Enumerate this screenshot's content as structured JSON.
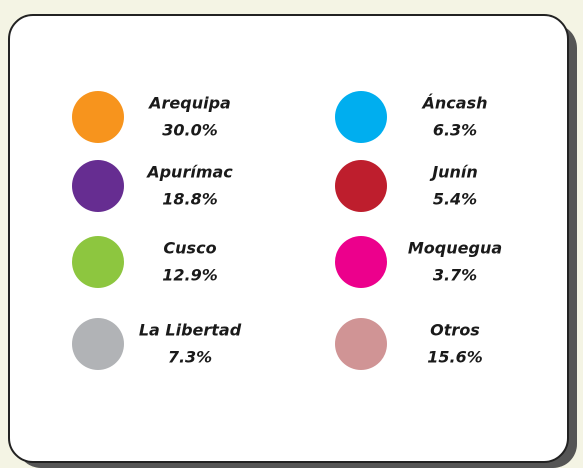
{
  "items": [
    {
      "name": "Arequipa",
      "share": "30.0%",
      "color": "#f7941d"
    },
    {
      "name": "Apurímac",
      "share": "18.8%",
      "color": "#662d91"
    },
    {
      "name": "Cusco",
      "share": "12.9%",
      "color": "#8dc63f"
    },
    {
      "name": "La Libertad",
      "share": "7.3%",
      "color": "#b1b3b6"
    },
    {
      "name": "Áncash",
      "share": "6.3%",
      "color": "#00aeef"
    },
    {
      "name": "Junín",
      "share": "5.4%",
      "color": "#be1e2d"
    },
    {
      "name": "Moquegua",
      "share": "3.7%",
      "color": "#ec008c"
    },
    {
      "name": "Otros",
      "share": "15.6%",
      "color": "#d09495"
    }
  ]
}
